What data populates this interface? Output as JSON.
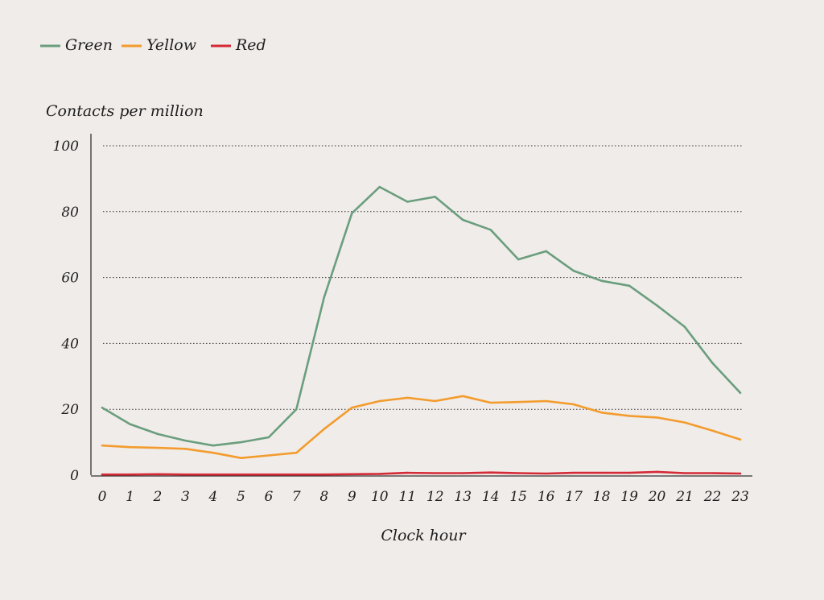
{
  "chart_data": {
    "type": "line",
    "title": "",
    "ylabel": "Contacts per million",
    "xlabel": "Clock hour",
    "ylim": [
      0,
      100
    ],
    "yticks": [
      0,
      20,
      40,
      60,
      80,
      100
    ],
    "grid": "horizontal dotted",
    "legend_position": "top-left",
    "x": [
      0,
      1,
      2,
      3,
      4,
      5,
      6,
      7,
      8,
      9,
      10,
      11,
      12,
      13,
      14,
      15,
      16,
      17,
      18,
      19,
      20,
      21,
      22,
      23
    ],
    "series": [
      {
        "name": "Green",
        "color": "#6a9e7d",
        "values": [
          20.5,
          15.5,
          12.5,
          10.5,
          9,
          10,
          11.5,
          20,
          54,
          79.5,
          87.5,
          83,
          84.5,
          77.5,
          74.5,
          65.5,
          68,
          62,
          59,
          57.5,
          51.5,
          45,
          34,
          25
        ]
      },
      {
        "name": "Yellow",
        "color": "#f39c2d",
        "values": [
          9,
          8.5,
          8.3,
          8,
          6.8,
          5.2,
          6,
          6.8,
          14,
          20.5,
          22.5,
          23.5,
          22.5,
          24,
          22,
          22.2,
          22.5,
          21.5,
          19,
          18,
          17.5,
          16,
          13.5,
          10.8
        ]
      },
      {
        "name": "Red",
        "color": "#d42a36",
        "values": [
          0.2,
          0.2,
          0.3,
          0.2,
          0.2,
          0.2,
          0.2,
          0.2,
          0.2,
          0.3,
          0.4,
          0.7,
          0.6,
          0.6,
          0.8,
          0.6,
          0.5,
          0.7,
          0.7,
          0.7,
          1,
          0.6,
          0.6,
          0.5
        ]
      }
    ]
  }
}
